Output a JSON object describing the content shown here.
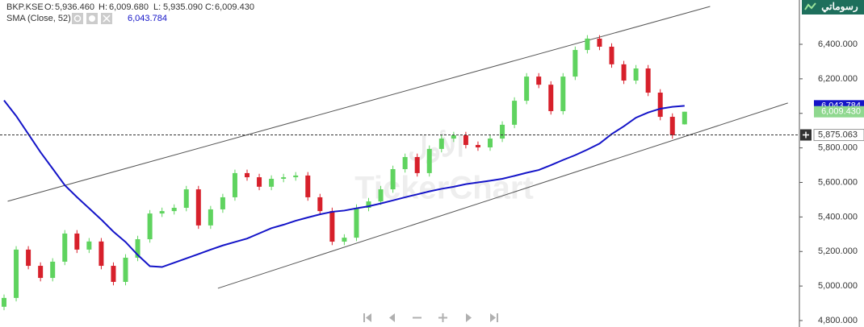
{
  "header": {
    "symbol": "BKP.KSE",
    "fields": [
      {
        "label": "O:",
        "value": "5,936.460"
      },
      {
        "label": "H:",
        "value": "6,009.680"
      },
      {
        "label": "L:",
        "value": "5,935.090"
      },
      {
        "label": "C:",
        "value": "6,009.430"
      }
    ],
    "sma_params": "(Close, 52)",
    "sma_value": "6,043.784"
  },
  "logo": "رسوماتي",
  "watermark": {
    "arabic": "الأول",
    "brand": "TickerChart"
  },
  "chart_data": {
    "type": "candlestick",
    "open": [
      4880,
      4931,
      5211,
      5117,
      5047,
      5141,
      5304,
      5211,
      5258,
      5117,
      5024,
      5164,
      5271,
      5420,
      5434,
      5453,
      5560,
      5351,
      5444,
      5514,
      5654,
      5630,
      5575,
      5621,
      5630,
      5640,
      5514,
      5434,
      5257,
      5280,
      5453,
      5490,
      5560,
      5677,
      5747,
      5654,
      5794,
      5854,
      5873,
      5817,
      5803,
      5854,
      5934,
      6073,
      6213,
      6166,
      6013,
      6213,
      6367,
      6433,
      6386,
      6284,
      6190,
      6260,
      6120,
      5980,
      5936.46
    ],
    "high": [
      4951,
      5231,
      5231,
      5137,
      5161,
      5324,
      5324,
      5278,
      5278,
      5137,
      5184,
      5291,
      5440,
      5454,
      5473,
      5580,
      5580,
      5464,
      5534,
      5674,
      5674,
      5650,
      5641,
      5650,
      5660,
      5660,
      5534,
      5454,
      5300,
      5473,
      5510,
      5580,
      5697,
      5767,
      5767,
      5814,
      5874,
      5893,
      5893,
      5837,
      5874,
      5954,
      6093,
      6233,
      6233,
      6186,
      6233,
      6387,
      6453,
      6453,
      6406,
      6304,
      6280,
      6280,
      6140,
      6000,
      6009.68
    ],
    "low": [
      4860,
      4911,
      5097,
      5027,
      5027,
      5121,
      5191,
      5191,
      5097,
      5004,
      5004,
      5144,
      5251,
      5400,
      5414,
      5433,
      5331,
      5331,
      5424,
      5494,
      5610,
      5555,
      5555,
      5601,
      5610,
      5494,
      5414,
      5237,
      5237,
      5260,
      5433,
      5470,
      5540,
      5657,
      5634,
      5634,
      5774,
      5834,
      5797,
      5783,
      5783,
      5834,
      5914,
      6053,
      6146,
      5993,
      5993,
      6193,
      6347,
      6366,
      6264,
      6170,
      6170,
      6100,
      5960,
      5853,
      5935.09
    ],
    "close": [
      4931,
      5211,
      5117,
      5047,
      5141,
      5304,
      5211,
      5258,
      5117,
      5024,
      5164,
      5271,
      5420,
      5434,
      5453,
      5560,
      5351,
      5444,
      5514,
      5654,
      5630,
      5575,
      5621,
      5630,
      5640,
      5514,
      5434,
      5257,
      5280,
      5453,
      5490,
      5560,
      5677,
      5747,
      5654,
      5794,
      5854,
      5873,
      5817,
      5803,
      5854,
      5934,
      6073,
      6213,
      6166,
      6013,
      6213,
      6367,
      6433,
      6386,
      6284,
      6190,
      6260,
      6120,
      5980,
      5873,
      6009.43
    ],
    "up_color": "#5fd35f",
    "down_color": "#d7202b",
    "series": [
      {
        "name": "SMA",
        "color": "#1414c8",
        "values": [
          6075,
          5985,
          5880,
          5775,
          5680,
          5584,
          5515,
          5450,
          5385,
          5315,
          5255,
          5180,
          5115,
          5110,
          5135,
          5160,
          5185,
          5211,
          5235,
          5255,
          5275,
          5305,
          5335,
          5355,
          5378,
          5397,
          5415,
          5430,
          5437,
          5450,
          5462,
          5478,
          5496,
          5514,
          5531,
          5548,
          5563,
          5575,
          5590,
          5600,
          5610,
          5621,
          5638,
          5656,
          5672,
          5700,
          5730,
          5758,
          5790,
          5825,
          5880,
          5925,
          5975,
          6005,
          6027,
          6038,
          6043.784
        ]
      }
    ],
    "ylim": [
      4762.7,
      6656.5
    ],
    "yticks": [
      {
        "value": 4800,
        "label": "4,800.000"
      },
      {
        "value": 5000,
        "label": "5,000.000"
      },
      {
        "value": 5200,
        "label": "5,200.000"
      },
      {
        "value": 5400,
        "label": "5,400.000"
      },
      {
        "value": 5600,
        "label": "5,600.000"
      },
      {
        "value": 5800,
        "label": "5,800.000"
      },
      {
        "value": 6000,
        "label": "6,000.000"
      },
      {
        "value": 6200,
        "label": "6,200.000"
      },
      {
        "value": 6400,
        "label": "6,400.000"
      }
    ],
    "trendlines": [
      {
        "x": [
          0.3,
          58.1
        ],
        "y": [
          5491,
          6619
        ]
      },
      {
        "x": [
          17.6,
          64.5
        ],
        "y": [
          4987,
          6060
        ]
      }
    ],
    "crosshair": {
      "value": 5875.063,
      "label": "5,875.063"
    },
    "price_labels": {
      "sma": "6,043.784",
      "close": "6,009.430"
    }
  }
}
